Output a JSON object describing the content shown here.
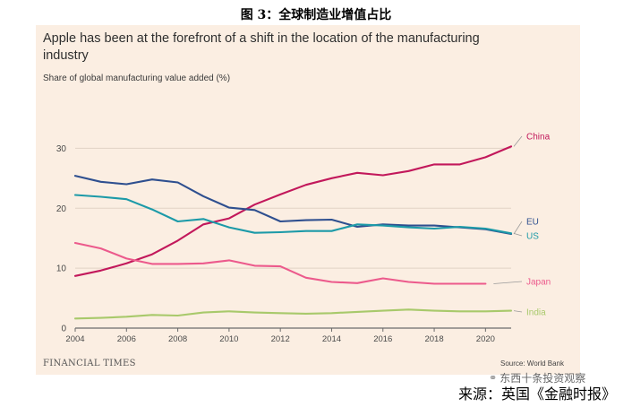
{
  "figure_title": "图 3：全球制造业增值占比",
  "caption": "来源：英国《金融时报》",
  "watermark": "东西十条投资观察",
  "watermark_icon": "wechat-icon",
  "panel": {
    "headline": "Apple has been at the forefront of a shift in the location of the manufacturing industry",
    "subtitle": "Share of global manufacturing value added (%)",
    "brand": "FINANCIAL TIMES",
    "source": "Source: World Bank"
  },
  "chart_data": {
    "type": "line",
    "title": "Apple has been at the forefront of a shift in the location of the manufacturing industry",
    "subtitle": "Share of global manufacturing value added (%)",
    "xlabel": "",
    "ylabel": "Share of global manufacturing value added (%)",
    "xlim": [
      2004,
      2021
    ],
    "ylim": [
      0,
      32
    ],
    "xticks": [
      2004,
      2006,
      2008,
      2010,
      2012,
      2014,
      2016,
      2018,
      2020
    ],
    "yticks": [
      0,
      10,
      20,
      30
    ],
    "grid": true,
    "legend": "right-end labels",
    "x": [
      2004,
      2005,
      2006,
      2007,
      2008,
      2009,
      2010,
      2011,
      2012,
      2013,
      2014,
      2015,
      2016,
      2017,
      2018,
      2019,
      2020,
      2021
    ],
    "series": [
      {
        "name": "China",
        "color": "#c2185b",
        "x_end": 2021,
        "values": [
          8.7,
          9.6,
          10.8,
          12.3,
          14.6,
          17.3,
          18.3,
          20.6,
          22.3,
          23.9,
          25.0,
          25.9,
          25.5,
          26.2,
          27.3,
          27.3,
          28.5,
          30.3
        ]
      },
      {
        "name": "EU",
        "color": "#2e4f8f",
        "x_end": 2021,
        "values": [
          25.4,
          24.4,
          24.0,
          24.8,
          24.3,
          22.0,
          20.1,
          19.7,
          17.8,
          18.0,
          18.1,
          16.9,
          17.3,
          17.1,
          17.1,
          16.8,
          16.5,
          15.7
        ]
      },
      {
        "name": "US",
        "color": "#1c9aa8",
        "x_end": 2021,
        "values": [
          22.2,
          21.9,
          21.5,
          19.8,
          17.8,
          18.2,
          16.8,
          15.9,
          16.0,
          16.2,
          16.2,
          17.3,
          17.1,
          16.8,
          16.6,
          16.9,
          16.6,
          15.8
        ]
      },
      {
        "name": "Japan",
        "color": "#ec5a8c",
        "x_end": 2020,
        "values": [
          14.2,
          13.3,
          11.6,
          10.7,
          10.7,
          10.8,
          11.3,
          10.4,
          10.3,
          8.4,
          7.7,
          7.5,
          8.3,
          7.7,
          7.4,
          7.4,
          7.4,
          null
        ]
      },
      {
        "name": "India",
        "color": "#a8c96b",
        "x_end": 2021,
        "values": [
          1.6,
          1.7,
          1.9,
          2.2,
          2.1,
          2.6,
          2.8,
          2.6,
          2.5,
          2.4,
          2.5,
          2.7,
          2.9,
          3.1,
          2.9,
          2.8,
          2.8,
          2.9
        ]
      }
    ],
    "series_labels": [
      {
        "name": "China",
        "text": "China"
      },
      {
        "name": "EU",
        "text": "EU"
      },
      {
        "name": "US",
        "text": "US"
      },
      {
        "name": "Japan",
        "text": "Japan"
      },
      {
        "name": "India",
        "text": "India"
      }
    ]
  }
}
